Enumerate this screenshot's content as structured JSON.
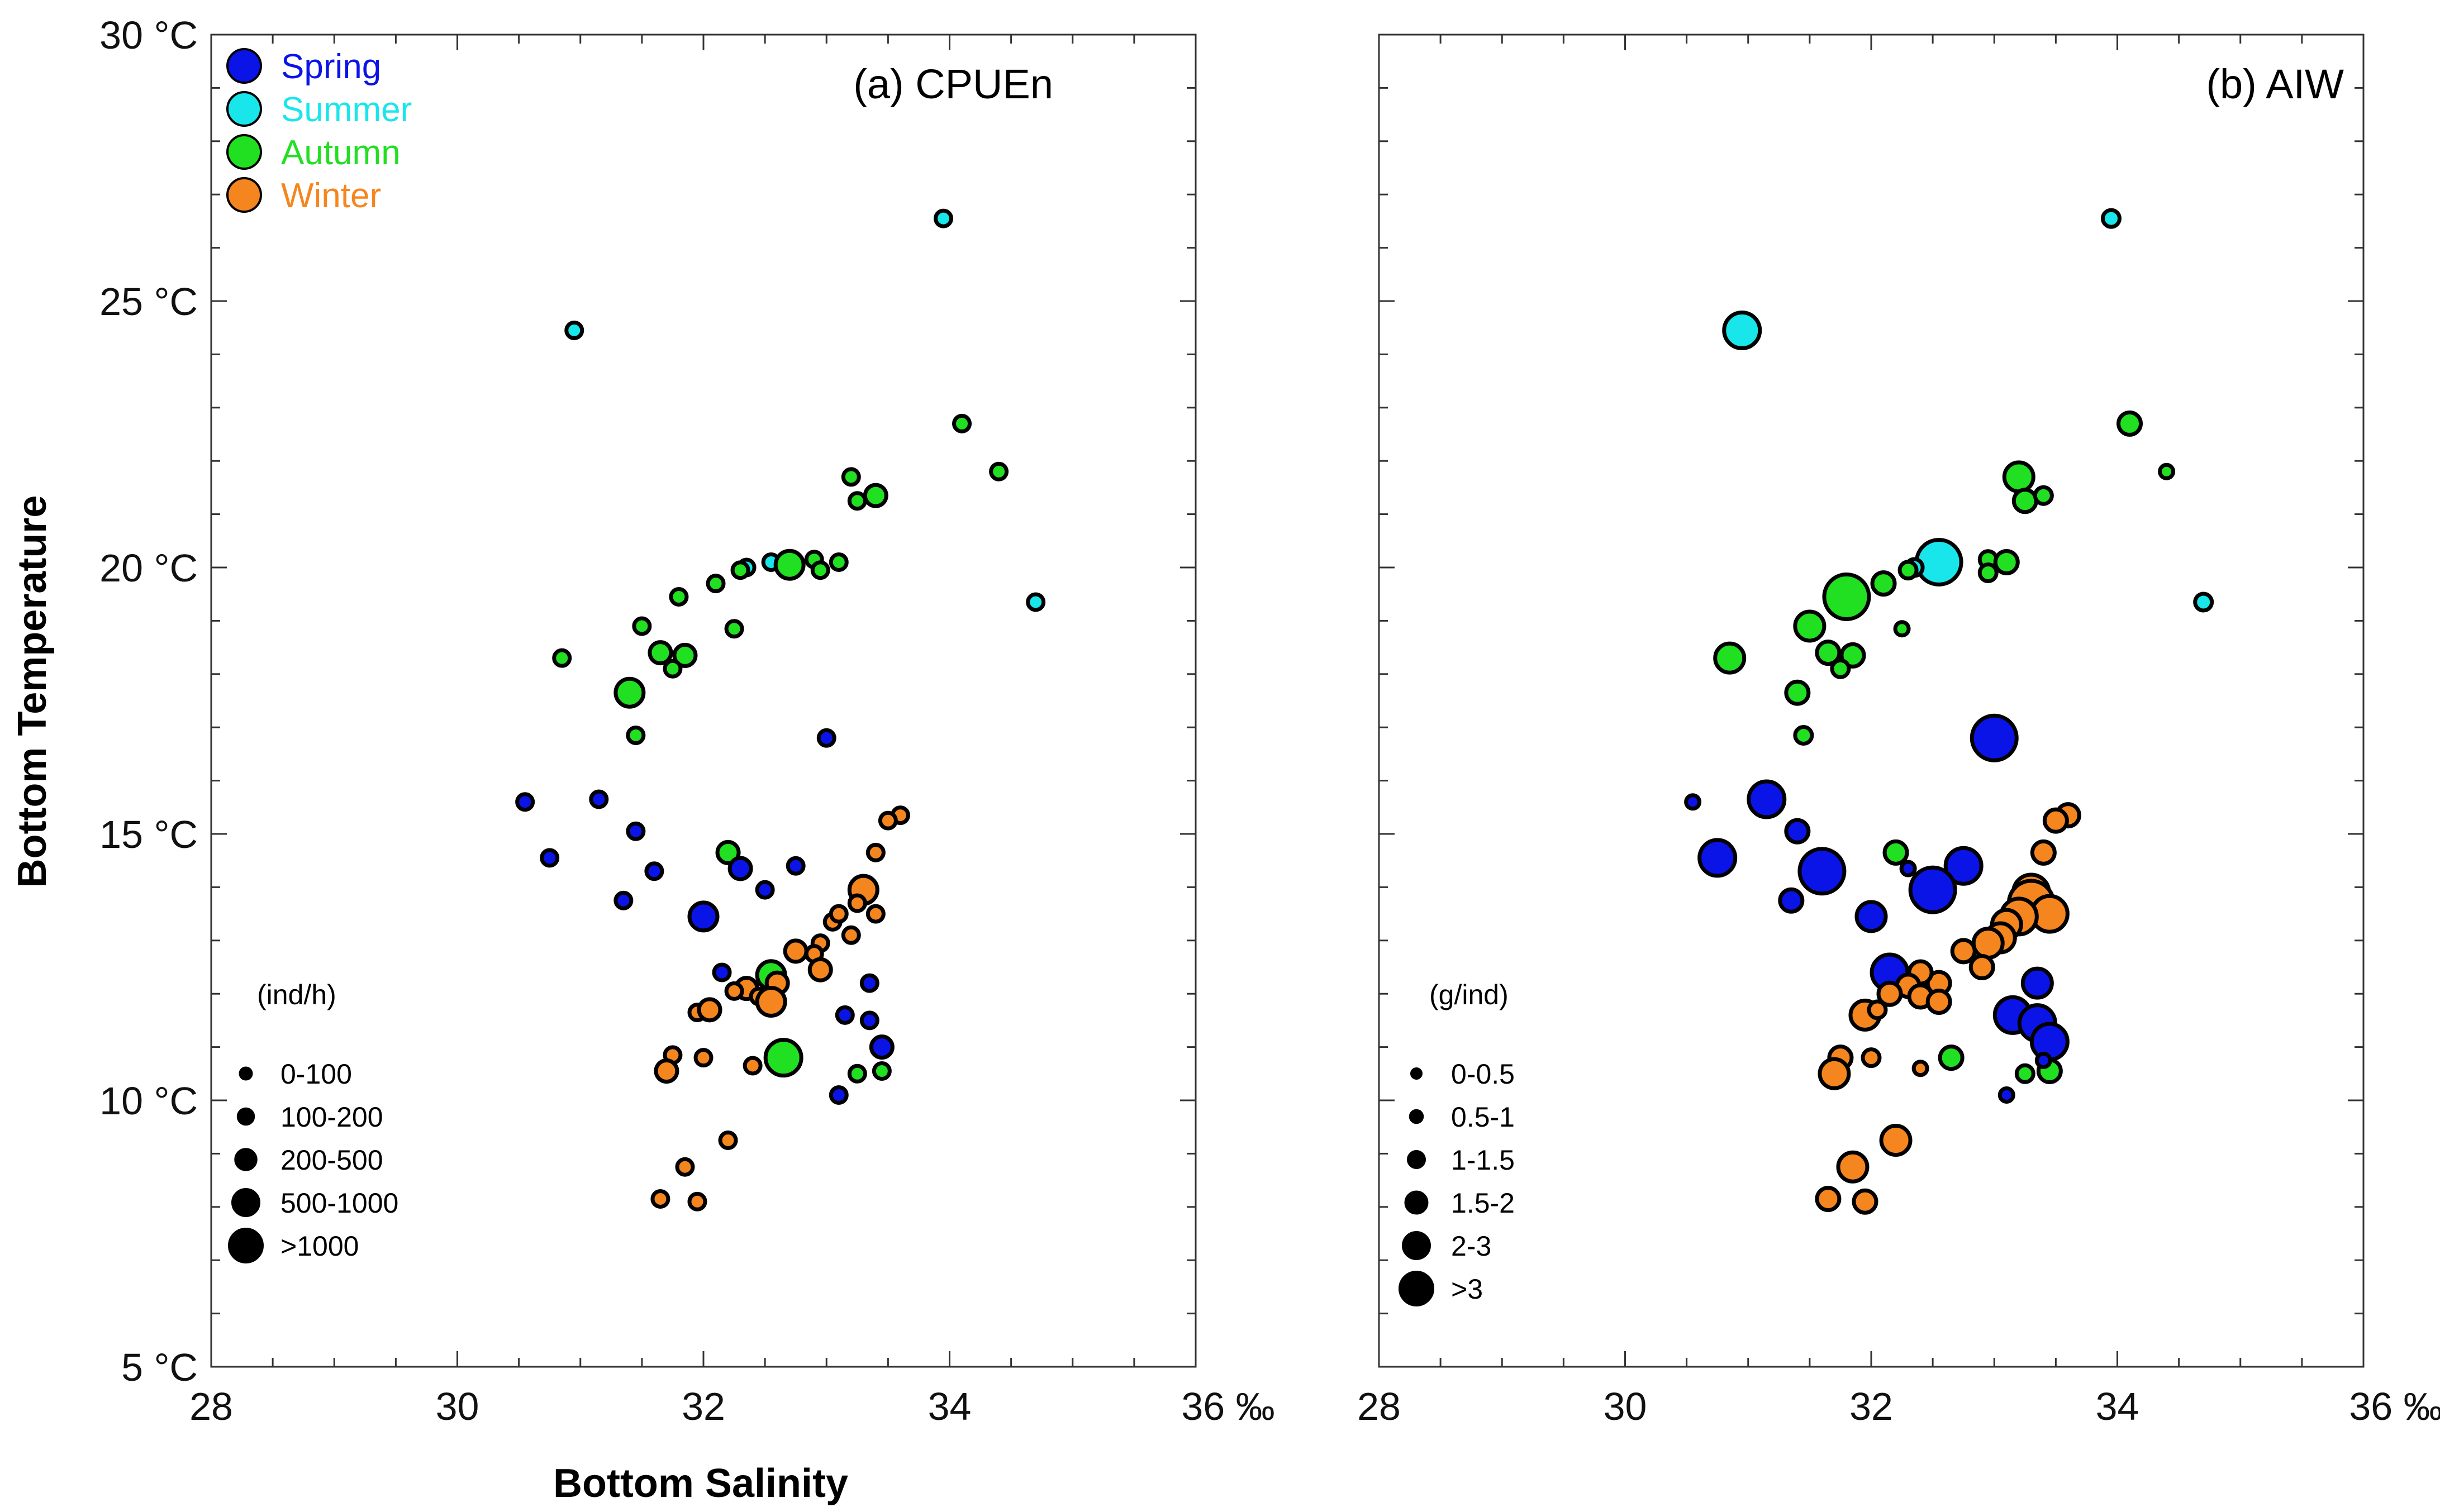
{
  "chart_data": [
    {
      "type": "scatter",
      "panel": "a",
      "title": "(a) CPUEn",
      "xlabel": "Bottom Salinity",
      "ylabel": "Bottom Temperature",
      "xlim": [
        28,
        36
      ],
      "ylim": [
        5,
        30
      ],
      "x_ticks": [
        28,
        30,
        32,
        34,
        36
      ],
      "x_tick_labels": [
        "28",
        "30",
        "32",
        "34",
        "36 ‰"
      ],
      "y_ticks": [
        5,
        10,
        15,
        20,
        25,
        30
      ],
      "y_tick_labels": [
        "5 °C",
        "10 °C",
        "15 °C",
        "20 °C",
        "25 °C",
        "30 °C"
      ],
      "seasons": [
        {
          "name": "Spring",
          "color": "#0b14e6"
        },
        {
          "name": "Summer",
          "color": "#19e6eb"
        },
        {
          "name": "Autumn",
          "color": "#21e021"
        },
        {
          "name": "Winter",
          "color": "#f5861f"
        }
      ],
      "size_legend": {
        "title": "(ind/h)",
        "classes": [
          "0-100",
          "100-200",
          "200-500",
          "500-1000",
          ">1000"
        ]
      },
      "points": [
        {
          "season": "Summer",
          "x": 33.95,
          "y": 26.55,
          "size": 1
        },
        {
          "season": "Summer",
          "x": 30.95,
          "y": 24.45,
          "size": 1
        },
        {
          "season": "Summer",
          "x": 34.7,
          "y": 19.35,
          "size": 1
        },
        {
          "season": "Summer",
          "x": 32.35,
          "y": 20.0,
          "size": 1
        },
        {
          "season": "Summer",
          "x": 32.55,
          "y": 20.1,
          "size": 1
        },
        {
          "season": "Autumn",
          "x": 34.1,
          "y": 22.7,
          "size": 1
        },
        {
          "season": "Autumn",
          "x": 34.4,
          "y": 21.8,
          "size": 1
        },
        {
          "season": "Autumn",
          "x": 33.2,
          "y": 21.7,
          "size": 1
        },
        {
          "season": "Autumn",
          "x": 33.25,
          "y": 21.25,
          "size": 1
        },
        {
          "season": "Autumn",
          "x": 33.4,
          "y": 21.35,
          "size": 2
        },
        {
          "season": "Autumn",
          "x": 32.7,
          "y": 20.05,
          "size": 3
        },
        {
          "season": "Autumn",
          "x": 32.9,
          "y": 20.15,
          "size": 1
        },
        {
          "season": "Autumn",
          "x": 32.95,
          "y": 19.95,
          "size": 1
        },
        {
          "season": "Autumn",
          "x": 33.1,
          "y": 20.1,
          "size": 1
        },
        {
          "season": "Autumn",
          "x": 32.3,
          "y": 19.95,
          "size": 1
        },
        {
          "season": "Autumn",
          "x": 32.1,
          "y": 19.7,
          "size": 1
        },
        {
          "season": "Autumn",
          "x": 31.8,
          "y": 19.45,
          "size": 1
        },
        {
          "season": "Autumn",
          "x": 31.5,
          "y": 18.9,
          "size": 1
        },
        {
          "season": "Autumn",
          "x": 32.25,
          "y": 18.85,
          "size": 1
        },
        {
          "season": "Autumn",
          "x": 30.85,
          "y": 18.3,
          "size": 1
        },
        {
          "season": "Autumn",
          "x": 31.65,
          "y": 18.4,
          "size": 2
        },
        {
          "season": "Autumn",
          "x": 31.85,
          "y": 18.35,
          "size": 2
        },
        {
          "season": "Autumn",
          "x": 31.75,
          "y": 18.1,
          "size": 1
        },
        {
          "season": "Autumn",
          "x": 31.4,
          "y": 17.65,
          "size": 3
        },
        {
          "season": "Autumn",
          "x": 31.45,
          "y": 16.85,
          "size": 1
        },
        {
          "season": "Autumn",
          "x": 32.2,
          "y": 14.65,
          "size": 2
        },
        {
          "season": "Autumn",
          "x": 32.55,
          "y": 12.35,
          "size": 3
        },
        {
          "season": "Autumn",
          "x": 32.65,
          "y": 10.8,
          "size": 4
        },
        {
          "season": "Autumn",
          "x": 33.25,
          "y": 10.5,
          "size": 1
        },
        {
          "season": "Autumn",
          "x": 33.45,
          "y": 10.55,
          "size": 1
        },
        {
          "season": "Spring",
          "x": 33.0,
          "y": 16.8,
          "size": 1
        },
        {
          "season": "Spring",
          "x": 30.55,
          "y": 15.6,
          "size": 1
        },
        {
          "season": "Spring",
          "x": 31.15,
          "y": 15.65,
          "size": 1
        },
        {
          "season": "Spring",
          "x": 31.45,
          "y": 15.05,
          "size": 1
        },
        {
          "season": "Spring",
          "x": 30.75,
          "y": 14.55,
          "size": 1
        },
        {
          "season": "Spring",
          "x": 31.6,
          "y": 14.3,
          "size": 1
        },
        {
          "season": "Spring",
          "x": 32.3,
          "y": 14.35,
          "size": 2
        },
        {
          "season": "Spring",
          "x": 32.75,
          "y": 14.4,
          "size": 1
        },
        {
          "season": "Spring",
          "x": 32.5,
          "y": 13.95,
          "size": 1
        },
        {
          "season": "Spring",
          "x": 31.35,
          "y": 13.75,
          "size": 1
        },
        {
          "season": "Spring",
          "x": 32.0,
          "y": 13.45,
          "size": 3
        },
        {
          "season": "Spring",
          "x": 32.15,
          "y": 12.4,
          "size": 1
        },
        {
          "season": "Spring",
          "x": 33.35,
          "y": 12.2,
          "size": 1
        },
        {
          "season": "Spring",
          "x": 33.15,
          "y": 11.6,
          "size": 1
        },
        {
          "season": "Spring",
          "x": 33.35,
          "y": 11.5,
          "size": 1
        },
        {
          "season": "Spring",
          "x": 33.45,
          "y": 11.0,
          "size": 2
        },
        {
          "season": "Spring",
          "x": 33.1,
          "y": 10.1,
          "size": 1
        },
        {
          "season": "Winter",
          "x": 33.6,
          "y": 15.35,
          "size": 1
        },
        {
          "season": "Winter",
          "x": 33.5,
          "y": 15.25,
          "size": 1
        },
        {
          "season": "Winter",
          "x": 33.4,
          "y": 14.65,
          "size": 1
        },
        {
          "season": "Winter",
          "x": 33.3,
          "y": 13.95,
          "size": 3
        },
        {
          "season": "Winter",
          "x": 33.25,
          "y": 13.7,
          "size": 1
        },
        {
          "season": "Winter",
          "x": 33.4,
          "y": 13.5,
          "size": 1
        },
        {
          "season": "Winter",
          "x": 33.05,
          "y": 13.35,
          "size": 1
        },
        {
          "season": "Winter",
          "x": 33.1,
          "y": 13.5,
          "size": 1
        },
        {
          "season": "Winter",
          "x": 33.2,
          "y": 13.1,
          "size": 1
        },
        {
          "season": "Winter",
          "x": 32.95,
          "y": 12.95,
          "size": 1
        },
        {
          "season": "Winter",
          "x": 32.75,
          "y": 12.8,
          "size": 2
        },
        {
          "season": "Winter",
          "x": 32.9,
          "y": 12.75,
          "size": 1
        },
        {
          "season": "Winter",
          "x": 32.95,
          "y": 12.45,
          "size": 2
        },
        {
          "season": "Winter",
          "x": 32.6,
          "y": 12.2,
          "size": 2
        },
        {
          "season": "Winter",
          "x": 32.35,
          "y": 12.1,
          "size": 2
        },
        {
          "season": "Winter",
          "x": 32.25,
          "y": 12.05,
          "size": 1
        },
        {
          "season": "Winter",
          "x": 32.45,
          "y": 11.95,
          "size": 1
        },
        {
          "season": "Winter",
          "x": 32.55,
          "y": 11.85,
          "size": 3
        },
        {
          "season": "Winter",
          "x": 31.95,
          "y": 11.65,
          "size": 1
        },
        {
          "season": "Winter",
          "x": 32.05,
          "y": 11.7,
          "size": 2
        },
        {
          "season": "Winter",
          "x": 31.75,
          "y": 10.85,
          "size": 1
        },
        {
          "season": "Winter",
          "x": 32.0,
          "y": 10.8,
          "size": 1
        },
        {
          "season": "Winter",
          "x": 31.7,
          "y": 10.55,
          "size": 2
        },
        {
          "season": "Winter",
          "x": 32.4,
          "y": 10.65,
          "size": 1
        },
        {
          "season": "Winter",
          "x": 32.2,
          "y": 9.25,
          "size": 1
        },
        {
          "season": "Winter",
          "x": 31.85,
          "y": 8.75,
          "size": 1
        },
        {
          "season": "Winter",
          "x": 31.65,
          "y": 8.15,
          "size": 1
        },
        {
          "season": "Winter",
          "x": 31.95,
          "y": 8.1,
          "size": 1
        }
      ]
    },
    {
      "type": "scatter",
      "panel": "b",
      "title": "(b) AIW",
      "xlim": [
        28,
        36
      ],
      "ylim": [
        5,
        30
      ],
      "x_ticks": [
        28,
        30,
        32,
        34,
        36
      ],
      "x_tick_labels": [
        "28",
        "30",
        "32",
        "34",
        "36 ‰"
      ],
      "y_ticks": [
        5,
        10,
        15,
        20,
        25,
        30
      ],
      "size_legend": {
        "title": "(g/ind)",
        "classes": [
          "0-0.5",
          "0.5-1",
          "1-1.5",
          "1.5-2",
          "2-3",
          ">3"
        ]
      },
      "points": [
        {
          "season": "Summer",
          "x": 33.95,
          "y": 26.55,
          "size": 2
        },
        {
          "season": "Summer",
          "x": 30.95,
          "y": 24.45,
          "size": 5
        },
        {
          "season": "Summer",
          "x": 34.7,
          "y": 19.35,
          "size": 2
        },
        {
          "season": "Summer",
          "x": 32.55,
          "y": 20.1,
          "size": 6
        },
        {
          "season": "Summer",
          "x": 32.35,
          "y": 20.0,
          "size": 2
        },
        {
          "season": "Autumn",
          "x": 34.1,
          "y": 22.7,
          "size": 3
        },
        {
          "season": "Autumn",
          "x": 34.4,
          "y": 21.8,
          "size": 1
        },
        {
          "season": "Autumn",
          "x": 33.2,
          "y": 21.7,
          "size": 4
        },
        {
          "season": "Autumn",
          "x": 33.25,
          "y": 21.25,
          "size": 3
        },
        {
          "season": "Autumn",
          "x": 33.4,
          "y": 21.35,
          "size": 2
        },
        {
          "season": "Autumn",
          "x": 32.95,
          "y": 20.15,
          "size": 2
        },
        {
          "season": "Autumn",
          "x": 33.1,
          "y": 20.1,
          "size": 3
        },
        {
          "season": "Autumn",
          "x": 32.95,
          "y": 19.9,
          "size": 2
        },
        {
          "season": "Autumn",
          "x": 32.3,
          "y": 19.95,
          "size": 2
        },
        {
          "season": "Autumn",
          "x": 32.1,
          "y": 19.7,
          "size": 3
        },
        {
          "season": "Autumn",
          "x": 31.8,
          "y": 19.45,
          "size": 6
        },
        {
          "season": "Autumn",
          "x": 31.5,
          "y": 18.9,
          "size": 4
        },
        {
          "season": "Autumn",
          "x": 32.25,
          "y": 18.85,
          "size": 1
        },
        {
          "season": "Autumn",
          "x": 30.85,
          "y": 18.3,
          "size": 4
        },
        {
          "season": "Autumn",
          "x": 31.65,
          "y": 18.4,
          "size": 3
        },
        {
          "season": "Autumn",
          "x": 31.85,
          "y": 18.35,
          "size": 3
        },
        {
          "season": "Autumn",
          "x": 31.75,
          "y": 18.1,
          "size": 2
        },
        {
          "season": "Autumn",
          "x": 31.4,
          "y": 17.65,
          "size": 3
        },
        {
          "season": "Autumn",
          "x": 31.45,
          "y": 16.85,
          "size": 2
        },
        {
          "season": "Autumn",
          "x": 32.2,
          "y": 14.65,
          "size": 3
        },
        {
          "season": "Autumn",
          "x": 32.65,
          "y": 10.8,
          "size": 3
        },
        {
          "season": "Autumn",
          "x": 33.25,
          "y": 10.5,
          "size": 2
        },
        {
          "season": "Autumn",
          "x": 33.45,
          "y": 10.55,
          "size": 3
        },
        {
          "season": "Spring",
          "x": 33.0,
          "y": 16.8,
          "size": 6
        },
        {
          "season": "Spring",
          "x": 30.55,
          "y": 15.6,
          "size": 1
        },
        {
          "season": "Spring",
          "x": 31.15,
          "y": 15.65,
          "size": 5
        },
        {
          "season": "Spring",
          "x": 31.4,
          "y": 15.05,
          "size": 3
        },
        {
          "season": "Spring",
          "x": 30.75,
          "y": 14.55,
          "size": 5
        },
        {
          "season": "Spring",
          "x": 31.6,
          "y": 14.3,
          "size": 6
        },
        {
          "season": "Spring",
          "x": 32.3,
          "y": 14.35,
          "size": 1
        },
        {
          "season": "Spring",
          "x": 32.75,
          "y": 14.4,
          "size": 5
        },
        {
          "season": "Spring",
          "x": 32.5,
          "y": 13.95,
          "size": 6
        },
        {
          "season": "Spring",
          "x": 31.35,
          "y": 13.75,
          "size": 3
        },
        {
          "season": "Spring",
          "x": 32.0,
          "y": 13.45,
          "size": 4
        },
        {
          "season": "Spring",
          "x": 32.15,
          "y": 12.4,
          "size": 5
        },
        {
          "season": "Spring",
          "x": 33.35,
          "y": 12.2,
          "size": 4
        },
        {
          "season": "Spring",
          "x": 33.15,
          "y": 11.6,
          "size": 5
        },
        {
          "season": "Spring",
          "x": 33.35,
          "y": 11.45,
          "size": 5
        },
        {
          "season": "Spring",
          "x": 33.45,
          "y": 11.1,
          "size": 5
        },
        {
          "season": "Spring",
          "x": 33.1,
          "y": 10.1,
          "size": 1
        },
        {
          "season": "Spring",
          "x": 33.4,
          "y": 10.75,
          "size": 1
        },
        {
          "season": "Winter",
          "x": 33.6,
          "y": 15.35,
          "size": 3
        },
        {
          "season": "Winter",
          "x": 33.5,
          "y": 15.25,
          "size": 3
        },
        {
          "season": "Winter",
          "x": 33.4,
          "y": 14.65,
          "size": 3
        },
        {
          "season": "Winter",
          "x": 33.3,
          "y": 13.9,
          "size": 5
        },
        {
          "season": "Winter",
          "x": 33.3,
          "y": 13.7,
          "size": 6
        },
        {
          "season": "Winter",
          "x": 33.45,
          "y": 13.5,
          "size": 5
        },
        {
          "season": "Winter",
          "x": 33.2,
          "y": 13.45,
          "size": 5
        },
        {
          "season": "Winter",
          "x": 33.1,
          "y": 13.3,
          "size": 4
        },
        {
          "season": "Winter",
          "x": 33.05,
          "y": 13.05,
          "size": 4
        },
        {
          "season": "Winter",
          "x": 32.95,
          "y": 12.95,
          "size": 4
        },
        {
          "season": "Winter",
          "x": 32.75,
          "y": 12.8,
          "size": 3
        },
        {
          "season": "Winter",
          "x": 32.9,
          "y": 12.5,
          "size": 3
        },
        {
          "season": "Winter",
          "x": 32.55,
          "y": 12.2,
          "size": 3
        },
        {
          "season": "Winter",
          "x": 32.4,
          "y": 12.4,
          "size": 3
        },
        {
          "season": "Winter",
          "x": 32.3,
          "y": 12.15,
          "size": 3
        },
        {
          "season": "Winter",
          "x": 32.15,
          "y": 12.0,
          "size": 3
        },
        {
          "season": "Winter",
          "x": 32.4,
          "y": 11.95,
          "size": 3
        },
        {
          "season": "Winter",
          "x": 32.55,
          "y": 11.85,
          "size": 3
        },
        {
          "season": "Winter",
          "x": 31.95,
          "y": 11.6,
          "size": 4
        },
        {
          "season": "Winter",
          "x": 32.05,
          "y": 11.7,
          "size": 2
        },
        {
          "season": "Winter",
          "x": 31.75,
          "y": 10.8,
          "size": 3
        },
        {
          "season": "Winter",
          "x": 32.0,
          "y": 10.8,
          "size": 2
        },
        {
          "season": "Winter",
          "x": 31.7,
          "y": 10.5,
          "size": 4
        },
        {
          "season": "Winter",
          "x": 32.4,
          "y": 10.6,
          "size": 1
        },
        {
          "season": "Winter",
          "x": 32.2,
          "y": 9.25,
          "size": 4
        },
        {
          "season": "Winter",
          "x": 31.85,
          "y": 8.75,
          "size": 4
        },
        {
          "season": "Winter",
          "x": 31.65,
          "y": 8.15,
          "size": 3
        },
        {
          "season": "Winter",
          "x": 31.95,
          "y": 8.1,
          "size": 3
        }
      ]
    }
  ]
}
